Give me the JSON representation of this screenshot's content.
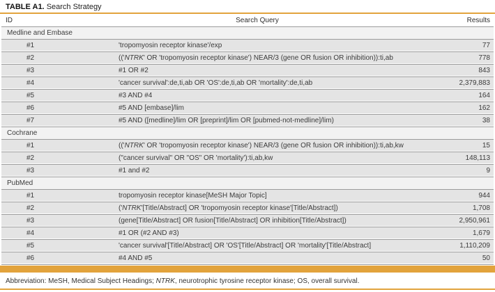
{
  "title": {
    "prefix": "TABLE A1.",
    "text": "Search Strategy"
  },
  "columns": {
    "id": "ID",
    "query": "Search Query",
    "results": "Results"
  },
  "sections": [
    {
      "name": "Medline and Embase",
      "rows": [
        {
          "id": "#1",
          "query": "'tropomyosin receptor kinase'/exp",
          "results": "77"
        },
        {
          "id": "#2",
          "query": "(('NTRK' OR 'tropomyosin receptor kinase') NEAR/3 (gene OR fusion OR inhibition)):ti,ab",
          "results": "778"
        },
        {
          "id": "#3",
          "query": "#1 OR #2",
          "results": "843"
        },
        {
          "id": "#4",
          "query": "'cancer survival':de,ti,ab OR 'OS':de,ti,ab OR 'mortality':de,ti,ab",
          "results": "2,379,883"
        },
        {
          "id": "#5",
          "query": "#3 AND #4",
          "results": "164"
        },
        {
          "id": "#6",
          "query": "#5 AND [embase]/lim",
          "results": "162"
        },
        {
          "id": "#7",
          "query": "#5 AND ([medline]/lim OR [preprint]/lim OR [pubmed-not-medline]/lim)",
          "results": "38"
        }
      ]
    },
    {
      "name": "Cochrane",
      "rows": [
        {
          "id": "#1",
          "query": "(('NTRK' OR 'tropomyosin receptor kinase') NEAR/3 (gene OR fusion OR inhibition)):ti,ab,kw",
          "results": "15"
        },
        {
          "id": "#2",
          "query": "(\"cancer survival\" OR \"OS\" OR 'mortality'):ti,ab,kw",
          "results": "148,113"
        },
        {
          "id": "#3",
          "query": "#1 and #2",
          "results": "9"
        }
      ]
    },
    {
      "name": "PubMed",
      "rows": [
        {
          "id": "#1",
          "query": "tropomyosin receptor kinase[MeSH Major Topic]",
          "results": "944"
        },
        {
          "id": "#2",
          "query": "('NTRK'[Title/Abstract] OR 'tropomyosin receptor kinase'[Title/Abstract])",
          "results": "1,708"
        },
        {
          "id": "#3",
          "query": "(gene[Title/Abstract] OR fusion[Title/Abstract] OR inhibition[Title/Abstract])",
          "results": "2,950,961"
        },
        {
          "id": "#4",
          "query": "#1 OR (#2 AND #3)",
          "results": "1,679"
        },
        {
          "id": "#5",
          "query": "'cancer survival'[Title/Abstract] OR 'OS'[Title/Abstract] OR 'mortality'[Title/Abstract]",
          "results": "1,110,209"
        },
        {
          "id": "#6",
          "query": "#4 AND #5",
          "results": "50"
        }
      ]
    }
  ],
  "footnote": "Abbreviation: MeSH, Medical Subject Headings; NTRK, neurotrophic tyrosine receptor kinase; OS, overall survival.",
  "format": {
    "italic_terms": [
      "NTRK"
    ]
  },
  "colors": {
    "accent_gold": "#E2A33C",
    "data_row_bg": "#e4e4e4",
    "section_row_bg": "#f2f2f2",
    "rule_gray": "#9c9c9c",
    "text": "#3b3b3b"
  }
}
